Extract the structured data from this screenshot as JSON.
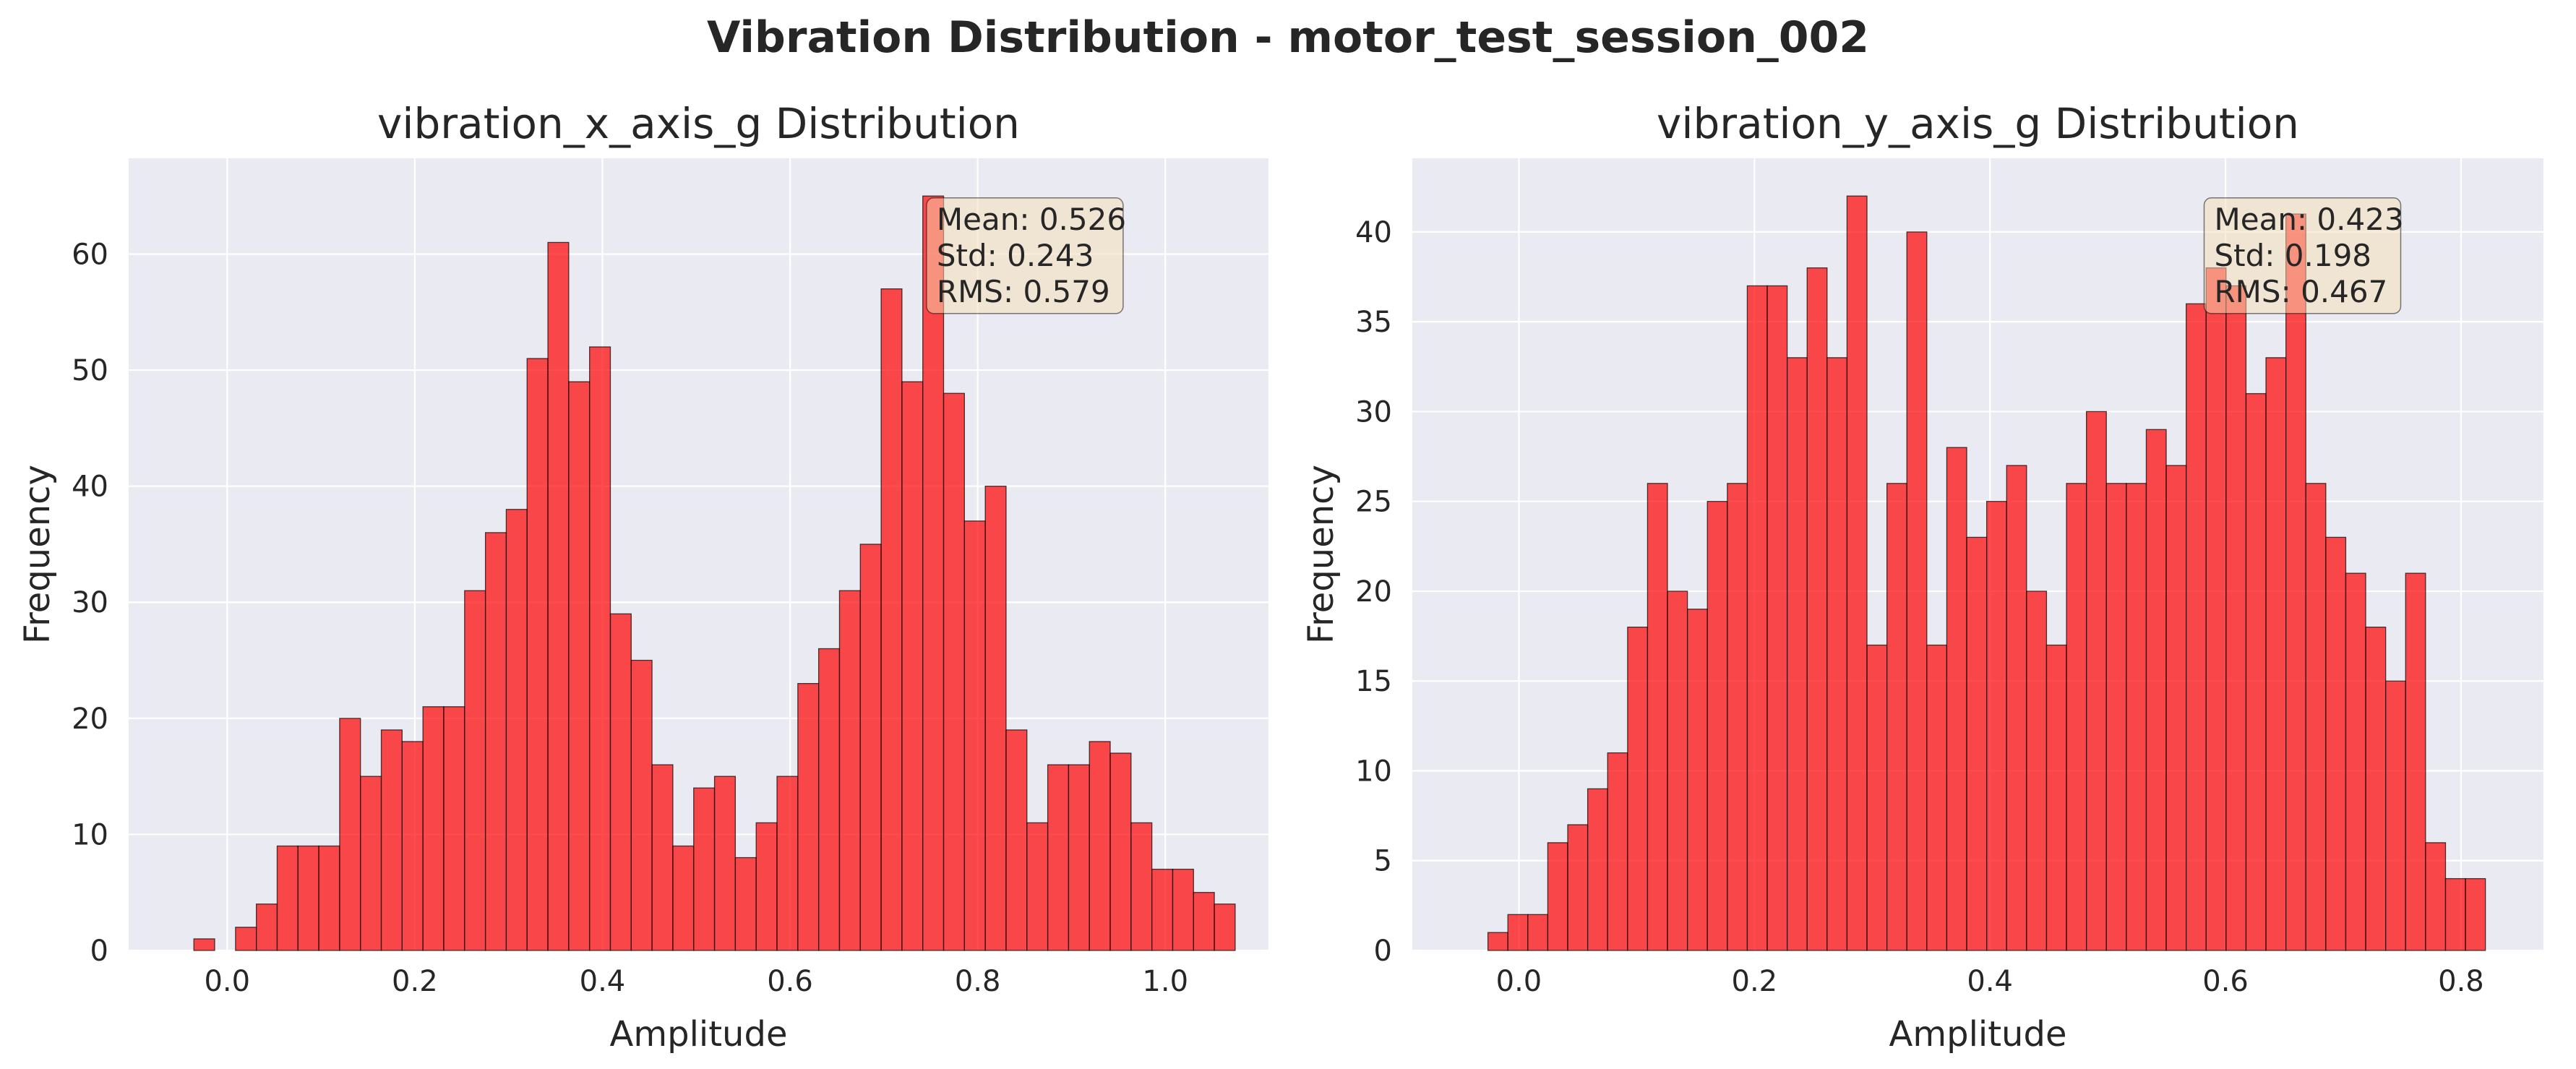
{
  "figure_title": "Vibration Distribution - motor_test_session_002",
  "colors": {
    "bar": "#ff0000",
    "bar_alpha": 0.7,
    "bar_edge": "#000000",
    "plot_bg": "#eaeaf2",
    "grid": "#ffffff",
    "stats_box": "#f5deb3"
  },
  "chart_data": [
    {
      "type": "bar",
      "title": "vibration_x_axis_g Distribution",
      "xlabel": "Amplitude",
      "ylabel": "Frequency",
      "xlim": [
        -0.105,
        1.11
      ],
      "ylim": [
        0,
        68.25
      ],
      "xticks": [
        0.0,
        0.2,
        0.4,
        0.6,
        0.8,
        1.0
      ],
      "xtick_labels": [
        "0.0",
        "0.2",
        "0.4",
        "0.6",
        "0.8",
        "1.0"
      ],
      "yticks": [
        0,
        10,
        20,
        30,
        40,
        50,
        60
      ],
      "ytick_labels": [
        "0",
        "10",
        "20",
        "30",
        "40",
        "50",
        "60"
      ],
      "grid": true,
      "bin_start": -0.0355,
      "bin_width": 0.0222,
      "values": [
        1,
        0,
        2,
        4,
        9,
        9,
        9,
        20,
        15,
        19,
        18,
        21,
        21,
        31,
        36,
        38,
        51,
        61,
        49,
        52,
        29,
        25,
        16,
        9,
        14,
        15,
        8,
        11,
        15,
        23,
        26,
        31,
        35,
        57,
        49,
        65,
        48,
        37,
        40,
        19,
        11,
        16,
        16,
        18,
        17,
        11,
        7,
        7,
        5,
        4
      ],
      "stats": [
        "Mean: 0.526",
        "Std: 0.243",
        "RMS: 0.579"
      ],
      "stats_position": "top-right"
    },
    {
      "type": "bar",
      "title": "vibration_y_axis_g Distribution",
      "xlabel": "Amplitude",
      "ylabel": "Frequency",
      "xlim": [
        -0.0905,
        0.87
      ],
      "ylim": [
        0,
        44.1
      ],
      "xticks": [
        0.0,
        0.2,
        0.4,
        0.6,
        0.8
      ],
      "xtick_labels": [
        "0.0",
        "0.2",
        "0.4",
        "0.6",
        "0.8"
      ],
      "yticks": [
        0,
        5,
        10,
        15,
        20,
        25,
        30,
        35,
        40
      ],
      "ytick_labels": [
        "0",
        "5",
        "10",
        "15",
        "20",
        "25",
        "30",
        "35",
        "40"
      ],
      "grid": true,
      "bin_start": -0.0263,
      "bin_width": 0.01694,
      "values": [
        1,
        2,
        2,
        6,
        7,
        9,
        11,
        18,
        26,
        20,
        19,
        25,
        26,
        37,
        37,
        33,
        38,
        33,
        42,
        17,
        26,
        40,
        17,
        28,
        23,
        25,
        27,
        20,
        17,
        26,
        30,
        26,
        26,
        29,
        27,
        36,
        38,
        37,
        31,
        33,
        41,
        26,
        23,
        21,
        18,
        15,
        21,
        6,
        4,
        4
      ],
      "stats": [
        "Mean: 0.423",
        "Std: 0.198",
        "RMS: 0.467"
      ],
      "stats_position": "top-right"
    }
  ]
}
